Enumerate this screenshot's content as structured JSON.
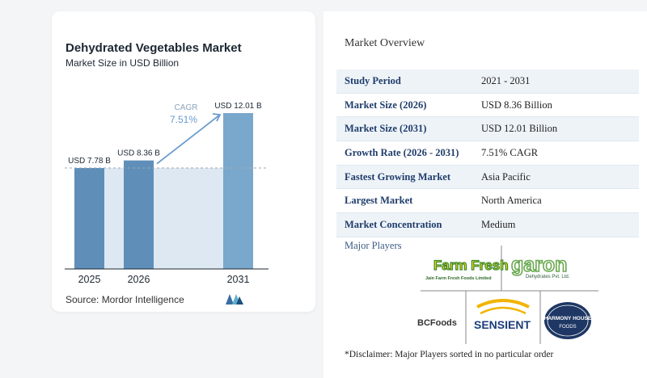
{
  "chart_data": {
    "type": "bar",
    "title": "Dehydrated Vegetables Market",
    "subtitle": "Market Size in USD Billion",
    "categories": [
      "2025",
      "2026",
      "2031"
    ],
    "values": [
      7.78,
      8.36,
      12.01
    ],
    "data_labels": [
      "USD 7.78 B",
      "USD 8.36 B",
      "USD 12.01 B"
    ],
    "cagr_label": "CAGR",
    "cagr_value": "7.51%",
    "grid": false,
    "colors": {
      "bar": "#5f8fb9",
      "bar_light": "#7aa8cc",
      "band": "#dde8f2",
      "arrow": "#6a9ccf",
      "axis": "#1d2733"
    }
  },
  "source": "Source: Mordor Intelligence",
  "overview": {
    "title": "Market Overview",
    "rows": [
      {
        "label": "Study Period",
        "value": "2021 - 2031"
      },
      {
        "label": "Market Size (2026)",
        "value": "USD 8.36 Billion"
      },
      {
        "label": "Market Size (2031)",
        "value": "USD 12.01 Billion"
      },
      {
        "label": "Growth Rate (2026 - 2031)",
        "value": "7.51% CAGR"
      },
      {
        "label": "Fastest Growing Market",
        "value": "Asia Pacific"
      },
      {
        "label": "Largest Market",
        "value": "North America"
      },
      {
        "label": "Market Concentration",
        "value": "Medium"
      }
    ]
  },
  "players": {
    "title": "Major Players",
    "logos": [
      {
        "name": "Farm Fresh",
        "sub": "Jain Farm Fresh Foods Limited"
      },
      {
        "name": "garon",
        "sub": "Dehydrates Pvt. Ltd."
      },
      {
        "name": "BCFoods"
      },
      {
        "name": "SENSIENT"
      },
      {
        "name": "HARMONY HOUSE",
        "sub": "FOODS"
      }
    ]
  },
  "disclaimer": "*Disclaimer: Major Players sorted in no particular order"
}
